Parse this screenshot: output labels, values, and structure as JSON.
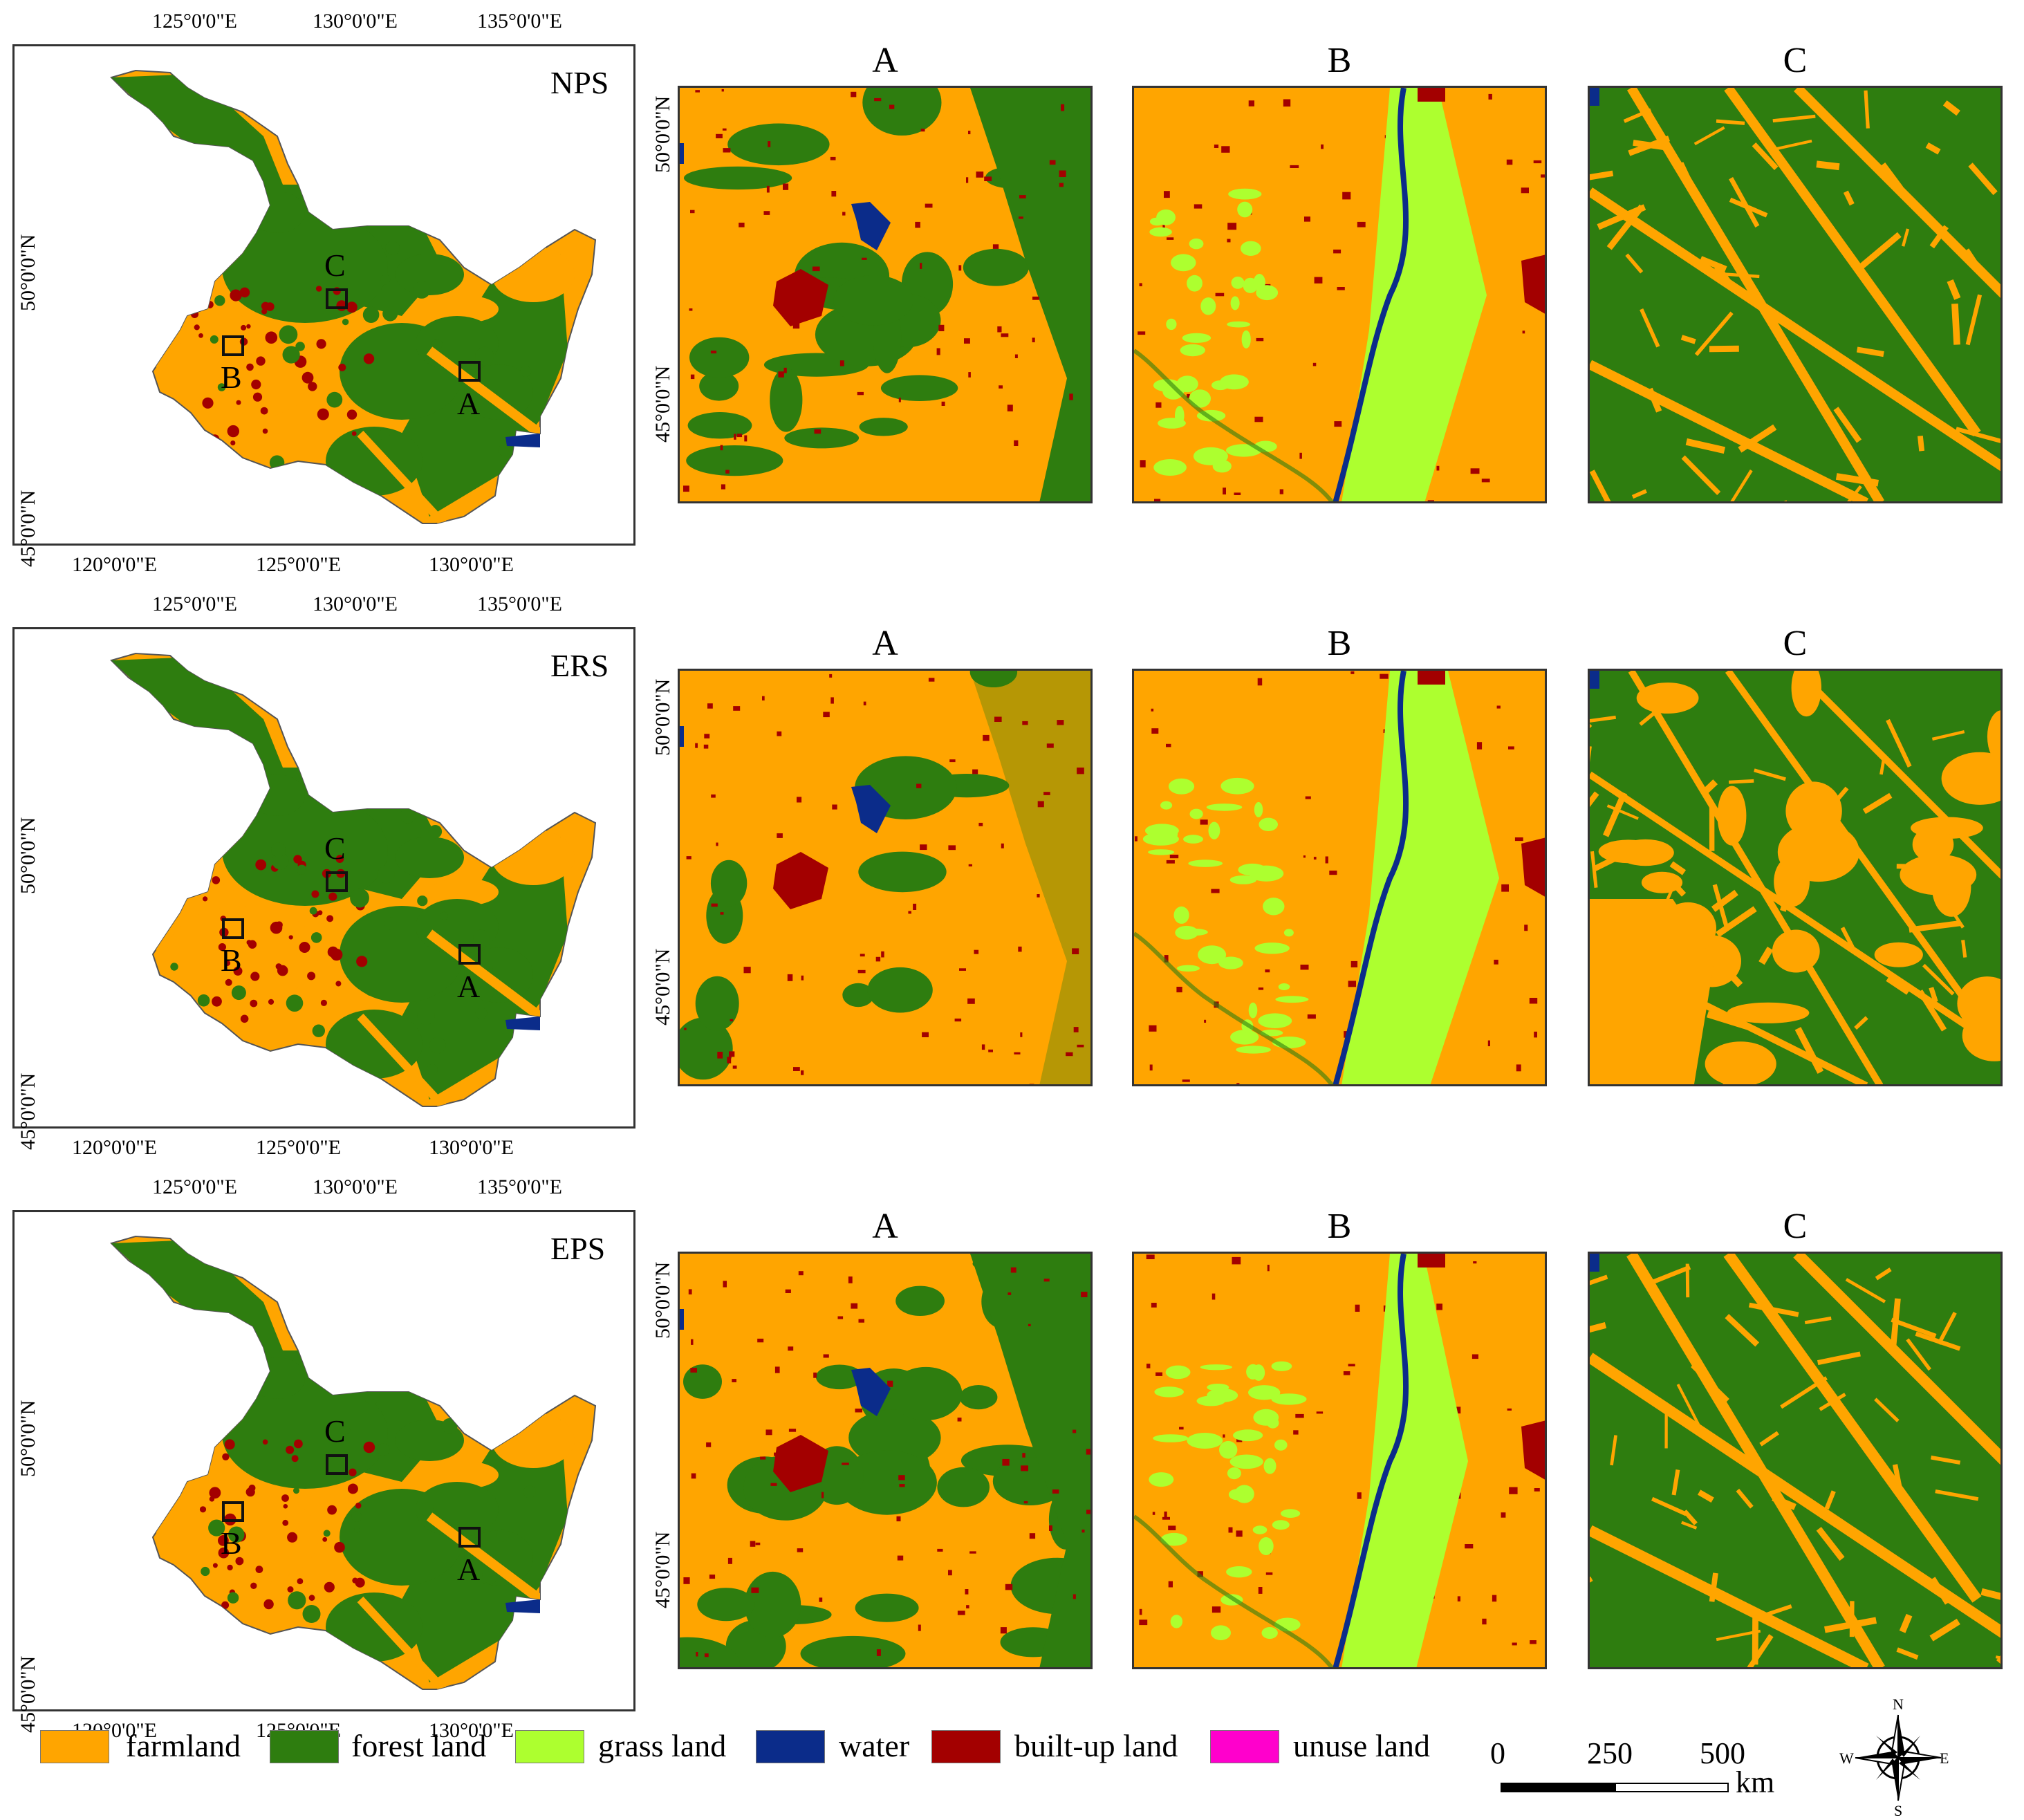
{
  "scenarios": [
    {
      "label": "NPS",
      "zoom_titles": [
        "A",
        "B",
        "C"
      ]
    },
    {
      "label": "ERS",
      "zoom_titles": [
        "A",
        "B",
        "C"
      ]
    },
    {
      "label": "EPS",
      "zoom_titles": [
        "A",
        "B",
        "C"
      ]
    }
  ],
  "map_ticks": {
    "top": [
      "125°0'0\"E",
      "130°0'0\"E",
      "135°0'0\"E"
    ],
    "bottom": [
      "120°0'0\"E",
      "125°0'0\"E",
      "130°0'0\"E"
    ],
    "left": [
      "50°0'0\"N",
      "45°0'0\"N"
    ]
  },
  "zoom_ticks": [
    "50°0'0\"N",
    "45°0'0\"N"
  ],
  "box_labels": [
    "A",
    "B",
    "C"
  ],
  "legend": [
    {
      "label": "farmland",
      "color": "#FFA500"
    },
    {
      "label": "forest land",
      "color": "#2E7D0F"
    },
    {
      "label": "grass land",
      "color": "#ADFF2F"
    },
    {
      "label": "water",
      "color": "#0B2C8A"
    },
    {
      "label": "built-up land",
      "color": "#A30000"
    },
    {
      "label": "unuse land",
      "color": "#FF00CC"
    }
  ],
  "scale_bar": {
    "ticks": [
      "0",
      "250",
      "500"
    ],
    "unit": "km"
  },
  "compass": {
    "n": "N",
    "s": "S",
    "e": "E",
    "w": "W"
  }
}
